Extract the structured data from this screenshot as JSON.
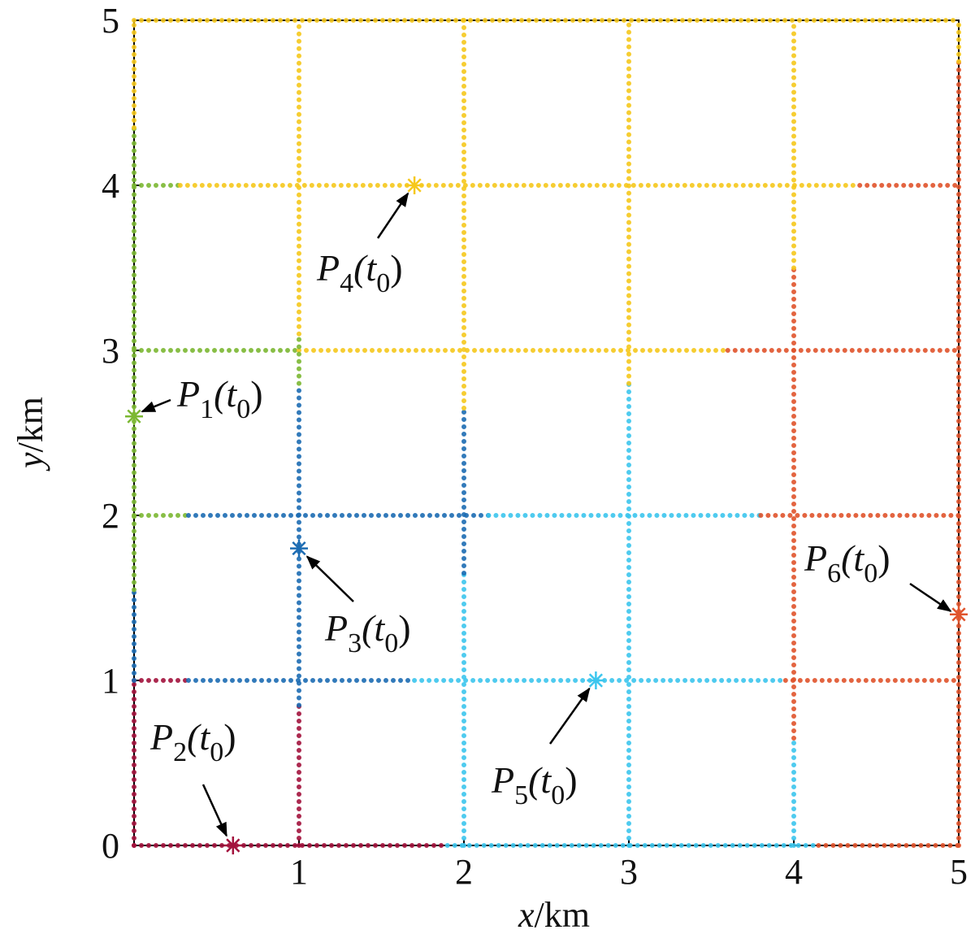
{
  "chart_data": {
    "type": "grid-paths",
    "xlabel": {
      "var": "x",
      "unit": "/km"
    },
    "ylabel": {
      "var": "y",
      "unit": "/km"
    },
    "xlim": [
      0,
      5
    ],
    "ylim": [
      0,
      5
    ],
    "xticks": [
      1,
      2,
      3,
      4,
      5
    ],
    "yticks": [
      0,
      1,
      2,
      3,
      4,
      5
    ],
    "segments": [
      {
        "color": "#a3123d",
        "x": [
          0,
          1.9
        ],
        "y": [
          0,
          0
        ]
      },
      {
        "color": "#3cc6ee",
        "x": [
          1.9,
          4.15
        ],
        "y": [
          0,
          0
        ]
      },
      {
        "color": "#e0542c",
        "x": [
          4.15,
          5
        ],
        "y": [
          0,
          0
        ]
      },
      {
        "color": "#a3123d",
        "x": [
          0,
          0.33
        ],
        "y": [
          1,
          1
        ]
      },
      {
        "color": "#1c6cb3",
        "x": [
          0.33,
          1.7
        ],
        "y": [
          1,
          1
        ]
      },
      {
        "color": "#3cc6ee",
        "x": [
          1.7,
          3.95
        ],
        "y": [
          1,
          1
        ]
      },
      {
        "color": "#e0542c",
        "x": [
          3.95,
          5
        ],
        "y": [
          1,
          1
        ]
      },
      {
        "color": "#7cb833",
        "x": [
          0,
          0.33
        ],
        "y": [
          2,
          2
        ]
      },
      {
        "color": "#1c6cb3",
        "x": [
          0.33,
          2.15
        ],
        "y": [
          2,
          2
        ]
      },
      {
        "color": "#3cc6ee",
        "x": [
          2.15,
          3.8
        ],
        "y": [
          2,
          2
        ]
      },
      {
        "color": "#e0542c",
        "x": [
          3.8,
          5
        ],
        "y": [
          2,
          2
        ]
      },
      {
        "color": "#7cb833",
        "x": [
          0,
          1
        ],
        "y": [
          3,
          3
        ]
      },
      {
        "color": "#f6c81c",
        "x": [
          1,
          3.6
        ],
        "y": [
          3,
          3
        ]
      },
      {
        "color": "#e0542c",
        "x": [
          3.6,
          5
        ],
        "y": [
          3,
          3
        ]
      },
      {
        "color": "#7cb833",
        "x": [
          0,
          0.28
        ],
        "y": [
          4,
          4
        ]
      },
      {
        "color": "#f6c81c",
        "x": [
          0.28,
          4.4
        ],
        "y": [
          4,
          4
        ]
      },
      {
        "color": "#e0542c",
        "x": [
          4.4,
          5
        ],
        "y": [
          4,
          4
        ]
      },
      {
        "color": "#f6c81c",
        "x": [
          0,
          5
        ],
        "y": [
          5,
          5
        ]
      },
      {
        "color": "#a3123d",
        "x": [
          0,
          0
        ],
        "y": [
          0,
          1
        ]
      },
      {
        "color": "#1c6cb3",
        "x": [
          0,
          0
        ],
        "y": [
          1,
          1.55
        ]
      },
      {
        "color": "#7cb833",
        "x": [
          0,
          0
        ],
        "y": [
          1.55,
          4.35
        ]
      },
      {
        "color": "#f6c81c",
        "x": [
          0,
          0
        ],
        "y": [
          4.35,
          5
        ]
      },
      {
        "color": "#a3123d",
        "x": [
          1,
          1
        ],
        "y": [
          0,
          0.85
        ]
      },
      {
        "color": "#1c6cb3",
        "x": [
          1,
          1
        ],
        "y": [
          0.85,
          2.8
        ]
      },
      {
        "color": "#7cb833",
        "x": [
          1,
          1
        ],
        "y": [
          2.8,
          3.1
        ]
      },
      {
        "color": "#f6c81c",
        "x": [
          1,
          1
        ],
        "y": [
          3.1,
          5
        ]
      },
      {
        "color": "#3cc6ee",
        "x": [
          2,
          2
        ],
        "y": [
          0,
          1.65
        ]
      },
      {
        "color": "#1c6cb3",
        "x": [
          2,
          2
        ],
        "y": [
          1.65,
          2.65
        ]
      },
      {
        "color": "#f6c81c",
        "x": [
          2,
          2
        ],
        "y": [
          2.65,
          5
        ]
      },
      {
        "color": "#3cc6ee",
        "x": [
          3,
          3
        ],
        "y": [
          0,
          2.8
        ]
      },
      {
        "color": "#f6c81c",
        "x": [
          3,
          3
        ],
        "y": [
          2.8,
          5
        ]
      },
      {
        "color": "#3cc6ee",
        "x": [
          4,
          4
        ],
        "y": [
          0,
          0.65
        ]
      },
      {
        "color": "#e0542c",
        "x": [
          4,
          4
        ],
        "y": [
          0.65,
          3.5
        ]
      },
      {
        "color": "#f6c81c",
        "x": [
          4,
          4
        ],
        "y": [
          3.5,
          5
        ]
      },
      {
        "color": "#e0542c",
        "x": [
          5,
          5
        ],
        "y": [
          0,
          4.75
        ]
      },
      {
        "color": "#f6c81c",
        "x": [
          5,
          5
        ],
        "y": [
          4.75,
          5
        ]
      }
    ],
    "points": [
      {
        "label": [
          "P",
          "1",
          "(t",
          "0",
          ")"
        ],
        "x": 0,
        "y": 2.6,
        "color": "#7cb833"
      },
      {
        "label": [
          "P",
          "2",
          "(t",
          "0",
          ")"
        ],
        "x": 0.6,
        "y": 0,
        "color": "#a3123d"
      },
      {
        "label": [
          "P",
          "3",
          "(t",
          "0",
          ")"
        ],
        "x": 1,
        "y": 1.8,
        "color": "#1c6cb3"
      },
      {
        "label": [
          "P",
          "4",
          "(t",
          "0",
          ")"
        ],
        "x": 1.7,
        "y": 4,
        "color": "#f6c81c"
      },
      {
        "label": [
          "P",
          "5",
          "(t",
          "0",
          ")"
        ],
        "x": 2.8,
        "y": 1,
        "color": "#3cc6ee"
      },
      {
        "label": [
          "P",
          "6",
          "(t",
          "0",
          ")"
        ],
        "x": 5,
        "y": 1.4,
        "color": "#e0542c"
      }
    ]
  }
}
